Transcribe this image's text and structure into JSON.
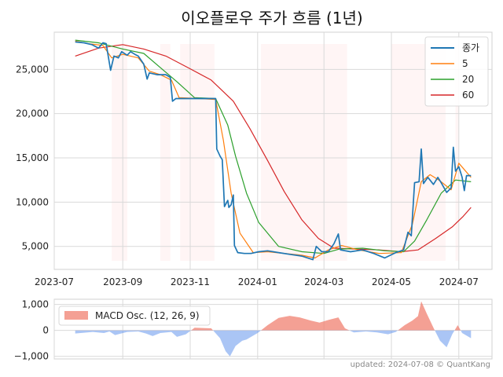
{
  "chart_data": [
    {
      "type": "line",
      "title": "이오플로우 주가 흐름 (1년)",
      "xlabel": "",
      "ylabel": "",
      "ylim": [
        2400,
        29200
      ],
      "xlim": [
        "2023-07-01",
        "2024-07-31"
      ],
      "x_ticks": [
        {
          "date": "2023-07-01",
          "label": "2023-07"
        },
        {
          "date": "2023-09-01",
          "label": "2023-09"
        },
        {
          "date": "2023-11-01",
          "label": "2023-11"
        },
        {
          "date": "2024-01-01",
          "label": "2024-01"
        },
        {
          "date": "2024-03-01",
          "label": "2024-03"
        },
        {
          "date": "2024-05-01",
          "label": "2024-05"
        },
        {
          "date": "2024-07-01",
          "label": "2024-07"
        }
      ],
      "y_ticks": [
        {
          "value": 5000,
          "label": "5,000"
        },
        {
          "value": 10000,
          "label": "10,000"
        },
        {
          "value": 15000,
          "label": "15,000"
        },
        {
          "value": 20000,
          "label": "20,000"
        },
        {
          "value": 25000,
          "label": "25,000"
        }
      ],
      "shaded_ranges": [
        [
          "2023-08-22",
          "2023-09-05"
        ],
        [
          "2023-10-05",
          "2023-10-14"
        ],
        [
          "2023-10-23",
          "2023-11-23"
        ],
        [
          "2024-01-04",
          "2024-03-22"
        ],
        [
          "2024-05-01",
          "2024-06-19"
        ],
        [
          "2024-06-28",
          "2024-07-01"
        ]
      ],
      "legend": {
        "position": "top-right",
        "entries": [
          "종가",
          "5",
          "20",
          "60"
        ]
      },
      "series": [
        {
          "name": "종가",
          "color": "#1f77b4",
          "points": [
            [
              "2023-07-20",
              28100
            ],
            [
              "2023-07-28",
              28000
            ],
            [
              "2023-08-04",
              27800
            ],
            [
              "2023-08-10",
              27400
            ],
            [
              "2023-08-14",
              28000
            ],
            [
              "2023-08-17",
              27900
            ],
            [
              "2023-08-21",
              24900
            ],
            [
              "2023-08-24",
              26500
            ],
            [
              "2023-08-28",
              26300
            ],
            [
              "2023-08-31",
              27000
            ],
            [
              "2023-09-05",
              26600
            ],
            [
              "2023-09-08",
              27000
            ],
            [
              "2023-09-12",
              26700
            ],
            [
              "2023-09-15",
              26500
            ],
            [
              "2023-09-20",
              25600
            ],
            [
              "2023-09-23",
              23900
            ],
            [
              "2023-09-25",
              24600
            ],
            [
              "2023-10-02",
              24400
            ],
            [
              "2023-10-10",
              24400
            ],
            [
              "2023-10-14",
              24100
            ],
            [
              "2023-10-16",
              21400
            ],
            [
              "2023-10-19",
              21700
            ],
            [
              "2023-10-24",
              21700
            ],
            [
              "2023-11-05",
              21700
            ],
            [
              "2023-11-15",
              21700
            ],
            [
              "2023-11-24",
              21700
            ],
            [
              "2023-11-25",
              16000
            ],
            [
              "2023-11-28",
              15200
            ],
            [
              "2023-11-30",
              14800
            ],
            [
              "2023-12-02",
              9500
            ],
            [
              "2023-12-05",
              10200
            ],
            [
              "2023-12-06",
              9400
            ],
            [
              "2023-12-08",
              9700
            ],
            [
              "2023-12-10",
              10800
            ],
            [
              "2023-12-11",
              5100
            ],
            [
              "2023-12-14",
              4300
            ],
            [
              "2023-12-20",
              4200
            ],
            [
              "2023-12-26",
              4200
            ],
            [
              "2024-01-02",
              4400
            ],
            [
              "2024-01-10",
              4500
            ],
            [
              "2024-01-20",
              4300
            ],
            [
              "2024-01-30",
              4100
            ],
            [
              "2024-02-10",
              3900
            ],
            [
              "2024-02-20",
              3500
            ],
            [
              "2024-02-23",
              5000
            ],
            [
              "2024-02-28",
              4400
            ],
            [
              "2024-03-05",
              4400
            ],
            [
              "2024-03-10",
              5300
            ],
            [
              "2024-03-14",
              6400
            ],
            [
              "2024-03-16",
              4600
            ],
            [
              "2024-03-25",
              4400
            ],
            [
              "2024-04-05",
              4600
            ],
            [
              "2024-04-15",
              4200
            ],
            [
              "2024-04-25",
              3700
            ],
            [
              "2024-05-05",
              4300
            ],
            [
              "2024-05-12",
              4600
            ],
            [
              "2024-05-16",
              6600
            ],
            [
              "2024-05-19",
              6200
            ],
            [
              "2024-05-22",
              12200
            ],
            [
              "2024-05-26",
              12300
            ],
            [
              "2024-05-28",
              16000
            ],
            [
              "2024-05-30",
              12100
            ],
            [
              "2024-06-03",
              12800
            ],
            [
              "2024-06-08",
              12000
            ],
            [
              "2024-06-12",
              12800
            ],
            [
              "2024-06-15",
              12200
            ],
            [
              "2024-06-20",
              11100
            ],
            [
              "2024-06-24",
              11600
            ],
            [
              "2024-06-26",
              16200
            ],
            [
              "2024-06-28",
              13500
            ],
            [
              "2024-07-01",
              14000
            ],
            [
              "2024-07-04",
              12800
            ],
            [
              "2024-07-06",
              11300
            ],
            [
              "2024-07-08",
              13000
            ],
            [
              "2024-07-12",
              13000
            ]
          ]
        },
        {
          "name": "5",
          "color": "#ff7f0e",
          "points": [
            [
              "2023-07-20",
              28200
            ],
            [
              "2023-08-01",
              27900
            ],
            [
              "2023-08-14",
              27700
            ],
            [
              "2023-08-22",
              26300
            ],
            [
              "2023-09-01",
              26700
            ],
            [
              "2023-09-15",
              26300
            ],
            [
              "2023-09-25",
              24800
            ],
            [
              "2023-10-05",
              24400
            ],
            [
              "2023-10-15",
              23800
            ],
            [
              "2023-10-22",
              21800
            ],
            [
              "2023-11-10",
              21700
            ],
            [
              "2023-11-24",
              21600
            ],
            [
              "2023-12-01",
              17000
            ],
            [
              "2023-12-08",
              11000
            ],
            [
              "2023-12-16",
              6500
            ],
            [
              "2023-12-28",
              4300
            ],
            [
              "2024-01-10",
              4400
            ],
            [
              "2024-02-10",
              4000
            ],
            [
              "2024-02-22",
              3700
            ],
            [
              "2024-03-05",
              4600
            ],
            [
              "2024-03-17",
              5100
            ],
            [
              "2024-04-01",
              4600
            ],
            [
              "2024-04-20",
              4200
            ],
            [
              "2024-05-10",
              4300
            ],
            [
              "2024-05-20",
              7500
            ],
            [
              "2024-05-28",
              12300
            ],
            [
              "2024-06-05",
              13100
            ],
            [
              "2024-06-14",
              12400
            ],
            [
              "2024-06-24",
              11400
            ],
            [
              "2024-07-01",
              14400
            ],
            [
              "2024-07-12",
              12800
            ]
          ]
        },
        {
          "name": "20",
          "color": "#2ca02c",
          "points": [
            [
              "2023-07-20",
              28300
            ],
            [
              "2023-08-10",
              28000
            ],
            [
              "2023-09-01",
              27300
            ],
            [
              "2023-09-20",
              26800
            ],
            [
              "2023-10-05",
              25200
            ],
            [
              "2023-10-20",
              23600
            ],
            [
              "2023-11-05",
              21800
            ],
            [
              "2023-11-24",
              21700
            ],
            [
              "2023-12-05",
              18700
            ],
            [
              "2023-12-12",
              15200
            ],
            [
              "2023-12-22",
              11000
            ],
            [
              "2024-01-02",
              7700
            ],
            [
              "2024-01-20",
              5000
            ],
            [
              "2024-02-10",
              4400
            ],
            [
              "2024-03-01",
              4200
            ],
            [
              "2024-03-15",
              4700
            ],
            [
              "2024-04-05",
              4800
            ],
            [
              "2024-04-25",
              4500
            ],
            [
              "2024-05-12",
              4400
            ],
            [
              "2024-05-22",
              5600
            ],
            [
              "2024-06-02",
              8000
            ],
            [
              "2024-06-15",
              11000
            ],
            [
              "2024-06-28",
              12500
            ],
            [
              "2024-07-12",
              12300
            ]
          ]
        },
        {
          "name": "60",
          "color": "#d62728",
          "points": [
            [
              "2023-07-20",
              26500
            ],
            [
              "2023-08-10",
              27400
            ],
            [
              "2023-09-01",
              27800
            ],
            [
              "2023-09-20",
              27300
            ],
            [
              "2023-10-10",
              26500
            ],
            [
              "2023-10-30",
              25200
            ],
            [
              "2023-11-20",
              23800
            ],
            [
              "2023-12-10",
              21400
            ],
            [
              "2023-12-25",
              18300
            ],
            [
              "2024-01-10",
              14700
            ],
            [
              "2024-01-25",
              11200
            ],
            [
              "2024-02-10",
              8000
            ],
            [
              "2024-02-25",
              5900
            ],
            [
              "2024-03-10",
              4800
            ],
            [
              "2024-03-30",
              4700
            ],
            [
              "2024-04-20",
              4600
            ],
            [
              "2024-05-10",
              4400
            ],
            [
              "2024-05-25",
              4600
            ],
            [
              "2024-06-10",
              5900
            ],
            [
              "2024-06-25",
              7200
            ],
            [
              "2024-07-05",
              8400
            ],
            [
              "2024-07-12",
              9400
            ]
          ]
        }
      ]
    },
    {
      "type": "area",
      "title": "",
      "ylim": [
        -1100,
        1200
      ],
      "y_ticks": [
        {
          "value": 1000,
          "label": "1,000"
        },
        {
          "value": 0,
          "label": "0"
        },
        {
          "value": -1000,
          "label": "−1,000"
        }
      ],
      "legend": {
        "position": "top-left",
        "entries": [
          "MACD Osc. (12, 26, 9)"
        ]
      },
      "series": [
        {
          "name": "MACD Osc. (12, 26, 9)",
          "positive_color": "#f08070",
          "negative_color": "#6495ed",
          "points": [
            [
              "2023-07-20",
              -120
            ],
            [
              "2023-08-05",
              -60
            ],
            [
              "2023-08-15",
              -100
            ],
            [
              "2023-08-20",
              -40
            ],
            [
              "2023-08-25",
              -180
            ],
            [
              "2023-09-05",
              -60
            ],
            [
              "2023-09-15",
              -40
            ],
            [
              "2023-09-22",
              -120
            ],
            [
              "2023-09-28",
              -220
            ],
            [
              "2023-10-05",
              -100
            ],
            [
              "2023-10-15",
              -60
            ],
            [
              "2023-10-20",
              -250
            ],
            [
              "2023-10-28",
              -150
            ],
            [
              "2023-11-05",
              100
            ],
            [
              "2023-11-20",
              80
            ],
            [
              "2023-11-28",
              -300
            ],
            [
              "2023-12-03",
              -800
            ],
            [
              "2023-12-07",
              -1000
            ],
            [
              "2023-12-12",
              -600
            ],
            [
              "2023-12-18",
              -400
            ],
            [
              "2023-12-22",
              -350
            ],
            [
              "2024-01-01",
              -100
            ],
            [
              "2024-01-10",
              200
            ],
            [
              "2024-01-20",
              480
            ],
            [
              "2024-01-30",
              560
            ],
            [
              "2024-02-08",
              500
            ],
            [
              "2024-02-18",
              380
            ],
            [
              "2024-02-26",
              300
            ],
            [
              "2024-03-05",
              400
            ],
            [
              "2024-03-14",
              500
            ],
            [
              "2024-03-20",
              80
            ],
            [
              "2024-03-28",
              -80
            ],
            [
              "2024-04-08",
              -40
            ],
            [
              "2024-04-18",
              -80
            ],
            [
              "2024-04-28",
              -150
            ],
            [
              "2024-05-05",
              -60
            ],
            [
              "2024-05-13",
              200
            ],
            [
              "2024-05-20",
              380
            ],
            [
              "2024-05-25",
              550
            ],
            [
              "2024-05-28",
              1120
            ],
            [
              "2024-06-02",
              650
            ],
            [
              "2024-06-08",
              100
            ],
            [
              "2024-06-14",
              -400
            ],
            [
              "2024-06-20",
              -650
            ],
            [
              "2024-06-25",
              -150
            ],
            [
              "2024-06-30",
              200
            ],
            [
              "2024-07-04",
              -100
            ],
            [
              "2024-07-12",
              -300
            ]
          ]
        }
      ]
    }
  ],
  "footer": "updated: 2024-07-08 © QuantKang"
}
